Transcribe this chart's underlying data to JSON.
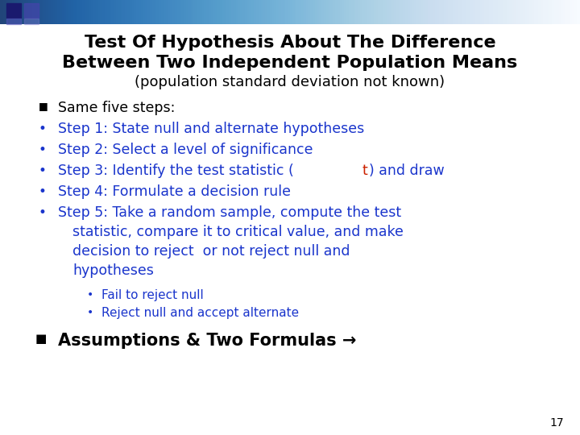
{
  "title_line1": "Test Of Hypothesis About The Difference",
  "title_line2": "Between Two Independent Population Means",
  "subtitle": "(population standard deviation not known)",
  "title_color": "#000000",
  "subtitle_color": "#000000",
  "blue_color": "#1a35cc",
  "red_color": "#cc2200",
  "black_color": "#000000",
  "bullet_square": "■",
  "bullet_circle": "•",
  "background_color": "#ffffff",
  "page_number": "17",
  "sub_items": [
    {
      "text": "Fail to reject null"
    },
    {
      "text": "Reject null and accept alternate"
    }
  ],
  "footer_text": "Assumptions & Two Formulas →"
}
